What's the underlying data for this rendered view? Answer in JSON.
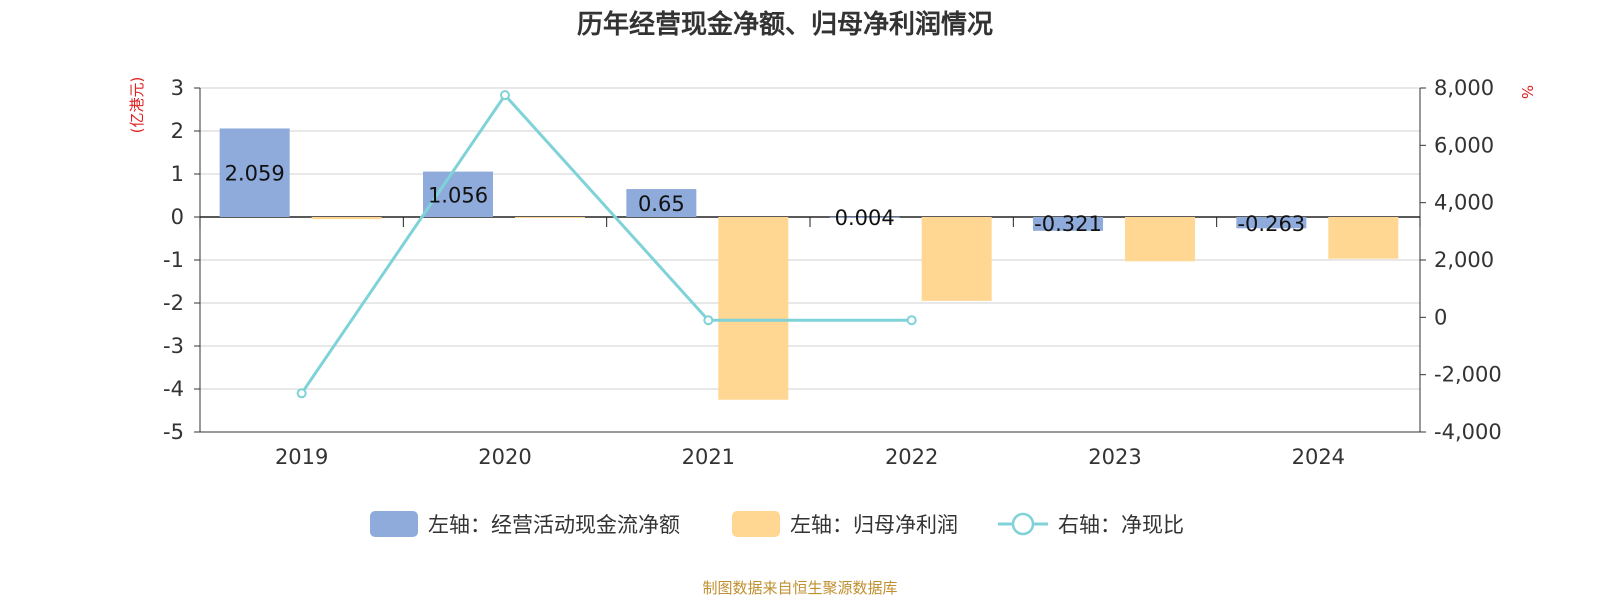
{
  "chart_data": {
    "type": "bar+line",
    "title": "历年经营现金净额、归母净利润情况",
    "categories": [
      "2019",
      "2020",
      "2021",
      "2022",
      "2023",
      "2024"
    ],
    "left_axis": {
      "unit": "(亿港元)",
      "ylim": [
        -5,
        3
      ],
      "ticks": [
        "3",
        "2",
        "1",
        "0",
        "-1",
        "-2",
        "-3",
        "-4",
        "-5"
      ]
    },
    "right_axis": {
      "unit": "%",
      "ylim": [
        -4000,
        8000
      ],
      "ticks": [
        "8,000",
        "6,000",
        "4,000",
        "2,000",
        "0",
        "-2,000",
        "-4,000"
      ]
    },
    "series": [
      {
        "name": "左轴：经营活动现金流净额",
        "type": "bar",
        "axis": "left",
        "color": "#8eabdb",
        "values": [
          2.059,
          1.056,
          0.65,
          0.004,
          -0.321,
          -0.263
        ],
        "labels": [
          "2.059",
          "1.056",
          "0.65",
          "0.004",
          "-0.321",
          "-0.263"
        ]
      },
      {
        "name": "左轴：归母净利润",
        "type": "bar",
        "axis": "left",
        "color": "#ffd793",
        "values": [
          -0.05,
          -0.01,
          -4.25,
          -1.95,
          -1.03,
          -0.97
        ]
      },
      {
        "name": "右轴：净现比",
        "type": "line",
        "axis": "right",
        "color": "#7fd3d8",
        "values": [
          -2650,
          7750,
          -100,
          -100,
          null,
          null
        ]
      }
    ],
    "grid": true,
    "legend_position": "bottom",
    "source": "制图数据来自恒生聚源数据库"
  }
}
